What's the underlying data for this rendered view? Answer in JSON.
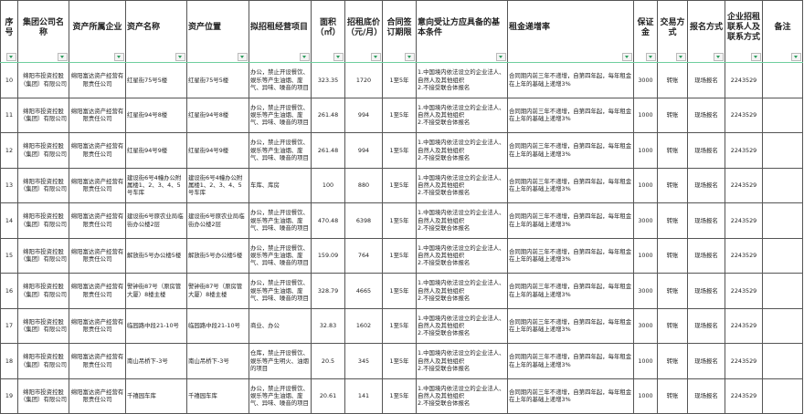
{
  "columns": [
    "序号",
    "集团公司名称",
    "资产所属企业",
    "资产名称",
    "资产位置",
    "拟招租经营项目",
    "面积（㎡）",
    "招租底价（元/月）",
    "合同签订期限",
    "意向受让方应具备的基本条件",
    "租金递增率",
    "保证金",
    "交易方式",
    "报名方式",
    "企业招租联系人及联系方式",
    "备注"
  ],
  "rows": [
    {
      "no": "10",
      "group": "绵阳市投资控股（集团）有限公司",
      "owner": "绵阳富达资产经营有限责任公司",
      "name": "红星街75号5楼",
      "location": "红星街75号5楼",
      "project": "办公，禁止开设餐饮、娱乐等产生油烟、废气、异味、噪音的项目",
      "area": "323.35",
      "price": "1720",
      "term": "1至5年",
      "conditions": "1.中国境内依法设立的企业法人、自然人及其他组织\n2.不接受联合体报名",
      "increase": "合同期内前三年不递增，自第四年起，每年租金在上年的基础上递增3%",
      "deposit": "3000",
      "trade": "转账",
      "signup": "现场报名",
      "contact": "2243529",
      "note": ""
    },
    {
      "no": "11",
      "group": "绵阳市投资控股（集团）有限公司",
      "owner": "绵阳富达资产经营有限责任公司",
      "name": "红星街94号8楼",
      "location": "红星街94号8楼",
      "project": "办公，禁止开设餐饮、娱乐等产生油烟、废气、异味、噪音的项目",
      "area": "261.48",
      "price": "994",
      "term": "1至5年",
      "conditions": "1.中国境内依法设立的企业法人、自然人及其他组织\n2.不接受联合体报名",
      "increase": "合同期内前三年不递增，自第四年起，每年租金在上年的基础上递增3%",
      "deposit": "1000",
      "trade": "转账",
      "signup": "现场报名",
      "contact": "2243529",
      "note": ""
    },
    {
      "no": "12",
      "group": "绵阳市投资控股（集团）有限公司",
      "owner": "绵阳富达资产经营有限责任公司",
      "name": "红星街94号9楼",
      "location": "红星街94号9楼",
      "project": "办公，禁止开设餐饮、娱乐等产生油烟、废气、异味、噪音的项目",
      "area": "261.48",
      "price": "994",
      "term": "1至5年",
      "conditions": "1.中国境内依法设立的企业法人、自然人及其他组织\n2.不接受联合体报名",
      "increase": "合同期内前三年不递增，自第四年起，每年租金在上年的基础上递增3%",
      "deposit": "1000",
      "trade": "转账",
      "signup": "现场报名",
      "contact": "2243529",
      "note": ""
    },
    {
      "no": "13",
      "group": "绵阳市投资控股（集团）有限公司",
      "owner": "绵阳富达资产经营有限责任公司",
      "name": "建设街6号4幢办公附属楼1、2、3、4、5号车库",
      "location": "建设街6号4幢办公附属楼1、2、3、4、5号车库",
      "project": "车库、库房",
      "area": "100",
      "price": "880",
      "term": "1至5年",
      "conditions": "1.中国境内依法设立的企业法人、自然人及其他组织\n2.不接受联合体报名",
      "increase": "合同期内前三年不递增，自第四年起，每年租金在上年的基础上递增3%",
      "deposit": "1000",
      "trade": "转账",
      "signup": "现场报名",
      "contact": "2243529",
      "note": ""
    },
    {
      "no": "14",
      "group": "绵阳市投资控股（集团）有限公司",
      "owner": "绵阳富达资产经营有限责任公司",
      "name": "建设街6号原农业局临街办公楼2层",
      "location": "建设街6号原农业局临街办公楼2层",
      "project": "办公，禁止开设餐饮、娱乐等产生油烟、废气、异味、噪音的项目",
      "area": "470.48",
      "price": "6398",
      "term": "1至5年",
      "conditions": "1.中国境内依法设立的企业法人、自然人及其他组织\n2.不接受联合体报名",
      "increase": "合同期内前三年不递增，自第四年起，每年租金在上年的基础上递增3%",
      "deposit": "3000",
      "trade": "转账",
      "signup": "现场报名",
      "contact": "2243529",
      "note": ""
    },
    {
      "no": "15",
      "group": "绵阳市投资控股（集团）有限公司",
      "owner": "绵阳富达资产经营有限责任公司",
      "name": "解放街5号办公楼5楼",
      "location": "解放街5号办公楼5楼",
      "project": "办公，禁止开设餐饮、娱乐等产生油烟、废气、异味、噪音的项目",
      "area": "159.09",
      "price": "764",
      "term": "1至5年",
      "conditions": "1.中国境内依法设立的企业法人、自然人及其他组织\n2.不接受联合体报名",
      "increase": "合同期内前三年不递增，自第四年起，每年租金在上年的基础上递增3%",
      "deposit": "1000",
      "trade": "转账",
      "signup": "现场报名",
      "contact": "2243529",
      "note": ""
    },
    {
      "no": "16",
      "group": "绵阳市投资控股（集团）有限公司",
      "owner": "绵阳富达资产经营有限责任公司",
      "name": "警钟街87号（原房管大厦）8楼主楼",
      "location": "警钟街87号（原房管大厦）8楼主楼",
      "project": "办公，禁止开设餐饮、娱乐等产生油烟、废气、异味、噪音的项目",
      "area": "328.79",
      "price": "4665",
      "term": "1至5年",
      "conditions": "1.中国境内依法设立的企业法人、自然人及其他组织\n2.不接受联合体报名",
      "increase": "合同期内前三年不递增，自第四年起，每年租金在上年的基础上递增3%",
      "deposit": "3000",
      "trade": "转账",
      "signup": "现场报名",
      "contact": "2243529",
      "note": ""
    },
    {
      "no": "17",
      "group": "绵阳市投资控股（集团）有限公司",
      "owner": "绵阳富达资产经营有限责任公司",
      "name": "临园路中段21-10号",
      "location": "临园路中段21-10号",
      "project": "商业、办公",
      "area": "32.83",
      "price": "1602",
      "term": "1至5年",
      "conditions": "1.中国境内依法设立的企业法人、自然人及其他组织\n2.不接受联合体报名",
      "increase": "合同期内前三年不递增，自第四年起，每年租金在上年的基础上递增3%",
      "deposit": "3000",
      "trade": "转账",
      "signup": "现场报名",
      "contact": "2243529",
      "note": ""
    },
    {
      "no": "18",
      "group": "绵阳市投资控股（集团）有限公司",
      "owner": "绵阳富达资产经营有限责任公司",
      "name": "南山吊桥下-3号",
      "location": "南山吊桥下-3号",
      "project": "仓库，禁止开设餐饮、娱乐等产生明火、油烟的项目",
      "area": "20.5",
      "price": "345",
      "term": "1至5年",
      "conditions": "1.中国境内依法设立的企业法人、自然人及其他组织\n2.不接受联合体报名",
      "increase": "合同期内前三年不递增，自第四年起，每年租金在上年的基础上递增3%",
      "deposit": "1000",
      "trade": "转账",
      "signup": "现场报名",
      "contact": "2243529",
      "note": ""
    },
    {
      "no": "19",
      "group": "绵阳市投资控股（集团）有限公司",
      "owner": "绵阳富达资产经营有限责任公司",
      "name": "千禧园车库",
      "location": "千禧园车库",
      "project": "办公，禁止开设餐饮、娱乐等产生油烟、废气、异味、噪音的项目",
      "area": "20.61",
      "price": "141",
      "term": "1至5年",
      "conditions": "1.中国境内依法设立的企业法人、自然人及其他组织\n2.不接受联合体报名",
      "increase": "合同期内前三年不递增，自第四年起，每年租金在上年的基础上递增3%",
      "deposit": "1000",
      "trade": "转账",
      "signup": "现场报名",
      "contact": "2243529",
      "note": ""
    }
  ]
}
